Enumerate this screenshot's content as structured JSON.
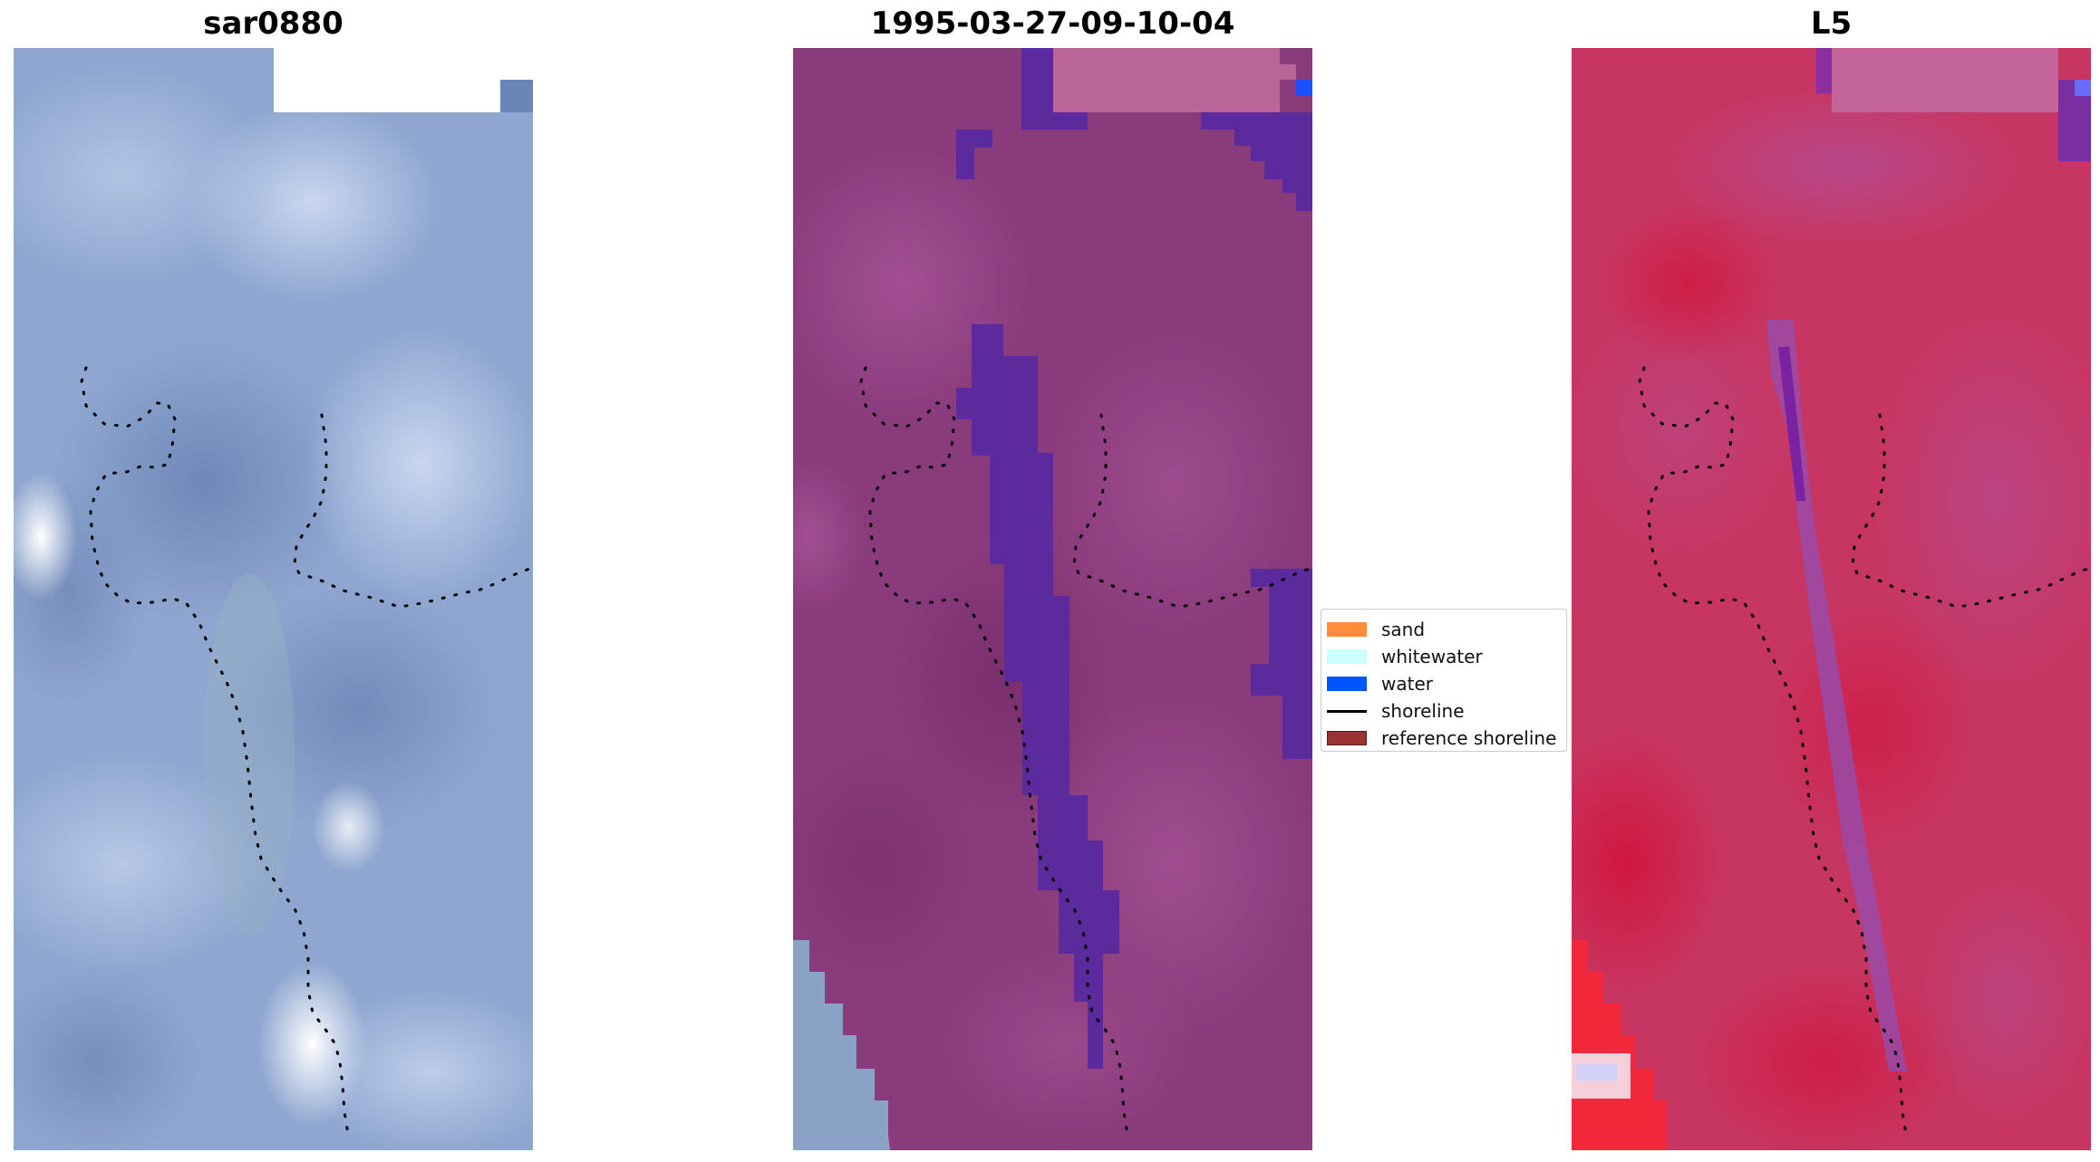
{
  "panels": [
    {
      "title": "sar0880",
      "image": "rgb satellite image (blue tones)"
    },
    {
      "title": "1995-03-27-09-10-04",
      "image": "classified image (purple tones)"
    },
    {
      "title": "L5",
      "image": "false-colour image (red tones)"
    }
  ],
  "legend": {
    "items": [
      {
        "label": "sand",
        "color": "#ff8c3a"
      },
      {
        "label": "whitewater",
        "color": "#ccffff"
      },
      {
        "label": "water",
        "color": "#0055ff"
      },
      {
        "label": "shoreline",
        "color": "#000000"
      },
      {
        "label": "reference shoreline",
        "color": "#993333"
      }
    ]
  },
  "colors": {
    "panel1_base": "#8ea5cf",
    "panel2_base": "#8a3a7a",
    "panel2_water": "#5a2a9e",
    "panel3_base": "#c8365e",
    "shoreline_dots": "#000000"
  }
}
